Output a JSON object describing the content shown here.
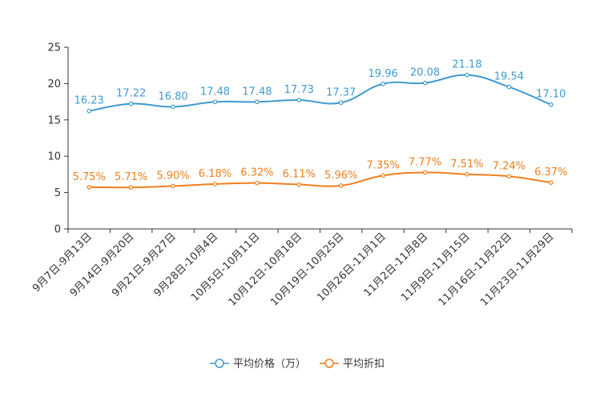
{
  "chart_data": {
    "type": "line",
    "title": "",
    "xlabel": "",
    "ylabel": "",
    "ylim": [
      0,
      25
    ],
    "yticks": [
      0,
      5,
      10,
      15,
      20,
      25
    ],
    "grid": false,
    "legend_position": "bottom-center",
    "categories": [
      "9月7日-9月13日",
      "9月14日-9月20日",
      "9月21日-9月27日",
      "9月28日-10月4日",
      "10月5日-10月11日",
      "10月12日-10月18日",
      "10月19日-10月25日",
      "10月26日-11月1日",
      "11月2日-11月8日",
      "11月9日-11月15日",
      "11月16日-11月22日",
      "11月23日-11月29日"
    ],
    "series": [
      {
        "name": "平均价格（万）",
        "color": "#3f9ad0",
        "values": [
          16.23,
          17.22,
          16.8,
          17.48,
          17.48,
          17.73,
          17.37,
          19.96,
          20.08,
          21.18,
          19.54,
          17.1
        ],
        "labels": [
          "16.23",
          "17.22",
          "16.80",
          "17.48",
          "17.48",
          "17.73",
          "17.37",
          "19.96",
          "20.08",
          "21.18",
          "19.54",
          "17.10"
        ]
      },
      {
        "name": "平均折扣",
        "color": "#f07f1e",
        "values": [
          5.75,
          5.71,
          5.9,
          6.18,
          6.32,
          6.11,
          5.96,
          7.35,
          7.77,
          7.51,
          7.24,
          6.37
        ],
        "labels": [
          "5.75%",
          "5.71%",
          "5.90%",
          "6.18%",
          "6.32%",
          "6.11%",
          "5.96%",
          "7.35%",
          "7.77%",
          "7.51%",
          "7.24%",
          "6.37%"
        ]
      }
    ]
  }
}
